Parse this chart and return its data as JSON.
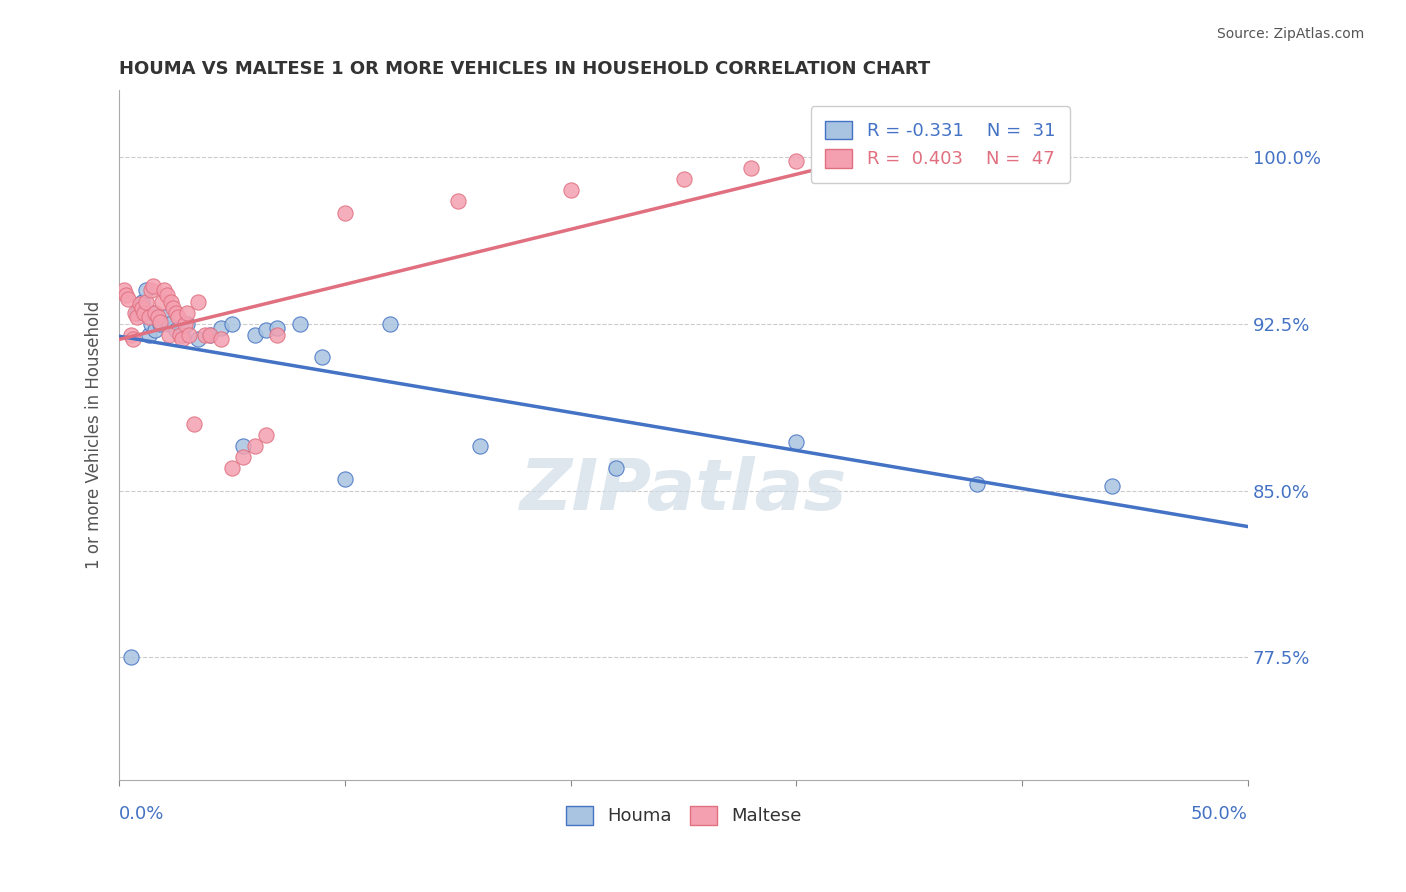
{
  "title": "HOUMA VS MALTESE 1 OR MORE VEHICLES IN HOUSEHOLD CORRELATION CHART",
  "source": "Source: ZipAtlas.com",
  "ylabel": "1 or more Vehicles in Household",
  "ytick_labels": [
    "77.5%",
    "85.0%",
    "92.5%",
    "100.0%"
  ],
  "ytick_values": [
    0.775,
    0.85,
    0.925,
    1.0
  ],
  "xlim": [
    0.0,
    0.5
  ],
  "ylim": [
    0.72,
    1.03
  ],
  "houma_R": -0.331,
  "houma_N": 31,
  "maltese_R": 0.403,
  "maltese_N": 47,
  "houma_color": "#a8c4e0",
  "maltese_color": "#f4a0b0",
  "houma_line_color": "#4472c4",
  "maltese_line_color": "#e07080",
  "watermark_text": "ZIPatlas",
  "title_color": "#333333",
  "axis_label_color": "#4472c4",
  "houma_x": [
    0.005,
    0.008,
    0.01,
    0.012,
    0.013,
    0.014,
    0.015,
    0.016,
    0.018,
    0.02,
    0.022,
    0.025,
    0.028,
    0.03,
    0.035,
    0.04,
    0.045,
    0.05,
    0.055,
    0.06,
    0.065,
    0.07,
    0.08,
    0.09,
    0.1,
    0.12,
    0.16,
    0.22,
    0.3,
    0.38,
    0.44
  ],
  "houma_y": [
    0.775,
    0.93,
    0.935,
    0.94,
    0.92,
    0.925,
    0.93,
    0.922,
    0.925,
    0.928,
    0.925,
    0.922,
    0.92,
    0.925,
    0.918,
    0.92,
    0.923,
    0.925,
    0.87,
    0.92,
    0.922,
    0.923,
    0.925,
    0.91,
    0.855,
    0.925,
    0.87,
    0.86,
    0.872,
    0.853,
    0.852
  ],
  "maltese_x": [
    0.002,
    0.003,
    0.004,
    0.005,
    0.006,
    0.007,
    0.008,
    0.009,
    0.01,
    0.011,
    0.012,
    0.013,
    0.014,
    0.015,
    0.016,
    0.017,
    0.018,
    0.019,
    0.02,
    0.021,
    0.022,
    0.023,
    0.024,
    0.025,
    0.026,
    0.027,
    0.028,
    0.029,
    0.03,
    0.031,
    0.033,
    0.035,
    0.038,
    0.04,
    0.045,
    0.05,
    0.055,
    0.06,
    0.065,
    0.07,
    0.1,
    0.15,
    0.2,
    0.25,
    0.28,
    0.3,
    0.35
  ],
  "maltese_y": [
    0.94,
    0.938,
    0.936,
    0.92,
    0.918,
    0.93,
    0.928,
    0.934,
    0.932,
    0.93,
    0.935,
    0.928,
    0.94,
    0.942,
    0.93,
    0.928,
    0.926,
    0.935,
    0.94,
    0.938,
    0.92,
    0.935,
    0.932,
    0.93,
    0.928,
    0.92,
    0.918,
    0.925,
    0.93,
    0.92,
    0.88,
    0.935,
    0.92,
    0.92,
    0.918,
    0.86,
    0.865,
    0.87,
    0.875,
    0.92,
    0.975,
    0.98,
    0.985,
    0.99,
    0.995,
    0.998,
    1.0
  ]
}
